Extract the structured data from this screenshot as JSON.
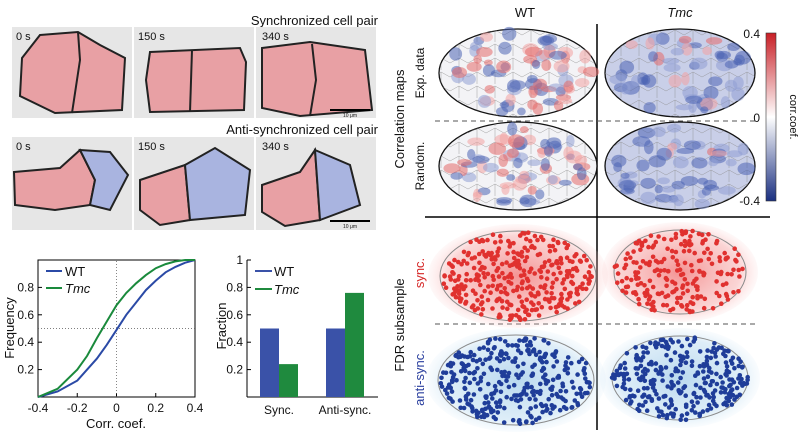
{
  "micro": {
    "sync_title": "Synchronized cell pair",
    "anti_title": "Anti-synchronized cell pair",
    "times": [
      "0 s",
      "150 s",
      "340 s"
    ],
    "scalebar": "10 μm"
  },
  "maps": {
    "col_wt": "WT",
    "col_tmc": "Tmc",
    "row_exp": "Exp. data",
    "row_random": "Random.",
    "group_corr": "Correlation maps",
    "colorbar_label": "corr.coef.",
    "colorbar_ticks": [
      "0.4",
      "0",
      "-0.4"
    ],
    "row_sync": "sync.",
    "row_anti": "anti-sync.",
    "group_fdr": "FDR subsample",
    "colors": {
      "positive": "#e0312f",
      "negative": "#1f3d99",
      "zero": "#ffffff"
    }
  },
  "chart_data": [
    {
      "type": "line",
      "xlabel": "Corr. coef.",
      "ylabel": "Frequency",
      "xlim": [
        -0.4,
        0.4
      ],
      "ylim": [
        0,
        1
      ],
      "xticks": [
        "-0.4",
        "-0.2",
        "0",
        "0.2",
        "0.4"
      ],
      "yticks": [
        "0.2",
        "0.4",
        "0.6",
        "0.8"
      ],
      "legend": "top-left",
      "series": [
        {
          "name": "WT",
          "color": "#2b4aa6",
          "x": [
            -0.4,
            -0.3,
            -0.2,
            -0.15,
            -0.1,
            -0.05,
            0,
            0.05,
            0.1,
            0.15,
            0.2,
            0.25,
            0.3,
            0.35,
            0.4
          ],
          "y": [
            0,
            0.04,
            0.12,
            0.2,
            0.28,
            0.38,
            0.49,
            0.6,
            0.69,
            0.78,
            0.85,
            0.91,
            0.95,
            0.98,
            1.0
          ]
        },
        {
          "name": "Tmc",
          "color": "#1a8a3c",
          "x": [
            -0.4,
            -0.3,
            -0.2,
            -0.15,
            -0.1,
            -0.05,
            0,
            0.05,
            0.1,
            0.15,
            0.2,
            0.25,
            0.3,
            0.35,
            0.4
          ],
          "y": [
            0,
            0.06,
            0.2,
            0.3,
            0.43,
            0.55,
            0.67,
            0.76,
            0.83,
            0.89,
            0.94,
            0.97,
            0.99,
            1.0,
            1.0
          ]
        }
      ]
    },
    {
      "type": "bar",
      "ylabel": "Fraction",
      "ylim": [
        0,
        1
      ],
      "yticks": [
        "0.2",
        "0.4",
        "0.6",
        "0.8",
        "1"
      ],
      "categories": [
        "Sync.",
        "Anti-sync."
      ],
      "legend": "top-left",
      "series": [
        {
          "name": "WT",
          "color": "#3a52a8",
          "values": [
            0.5,
            0.5
          ]
        },
        {
          "name": "Tmc",
          "color": "#1f8a3e",
          "values": [
            0.24,
            0.76
          ]
        }
      ]
    }
  ]
}
